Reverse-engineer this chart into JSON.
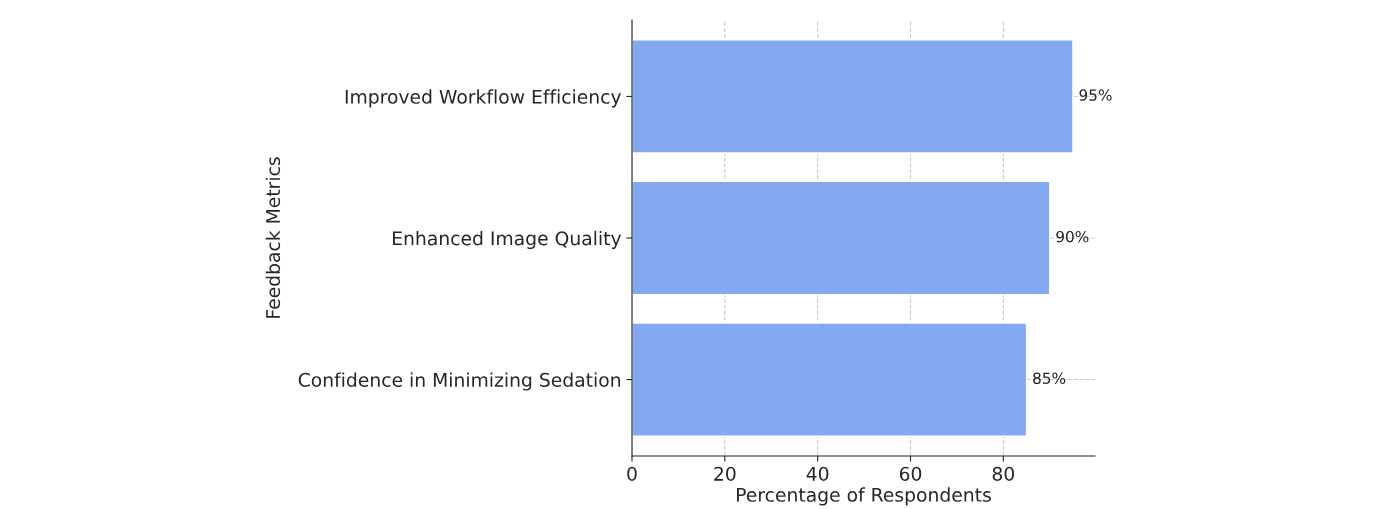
{
  "chart_data": {
    "type": "bar",
    "orientation": "horizontal",
    "xlabel": "Percentage of Respondents",
    "ylabel": "Feedback Metrics",
    "categories": [
      "Improved Workflow Efficiency",
      "Enhanced Image Quality",
      "Confidence in Minimizing Sedation"
    ],
    "values": [
      95,
      90,
      85
    ],
    "value_labels": [
      "95%",
      "90%",
      "85%"
    ],
    "color": "#84a9f0",
    "xlim": [
      0,
      99.75
    ],
    "xticks": [
      0,
      20,
      40,
      60,
      80
    ],
    "grid": true
  }
}
